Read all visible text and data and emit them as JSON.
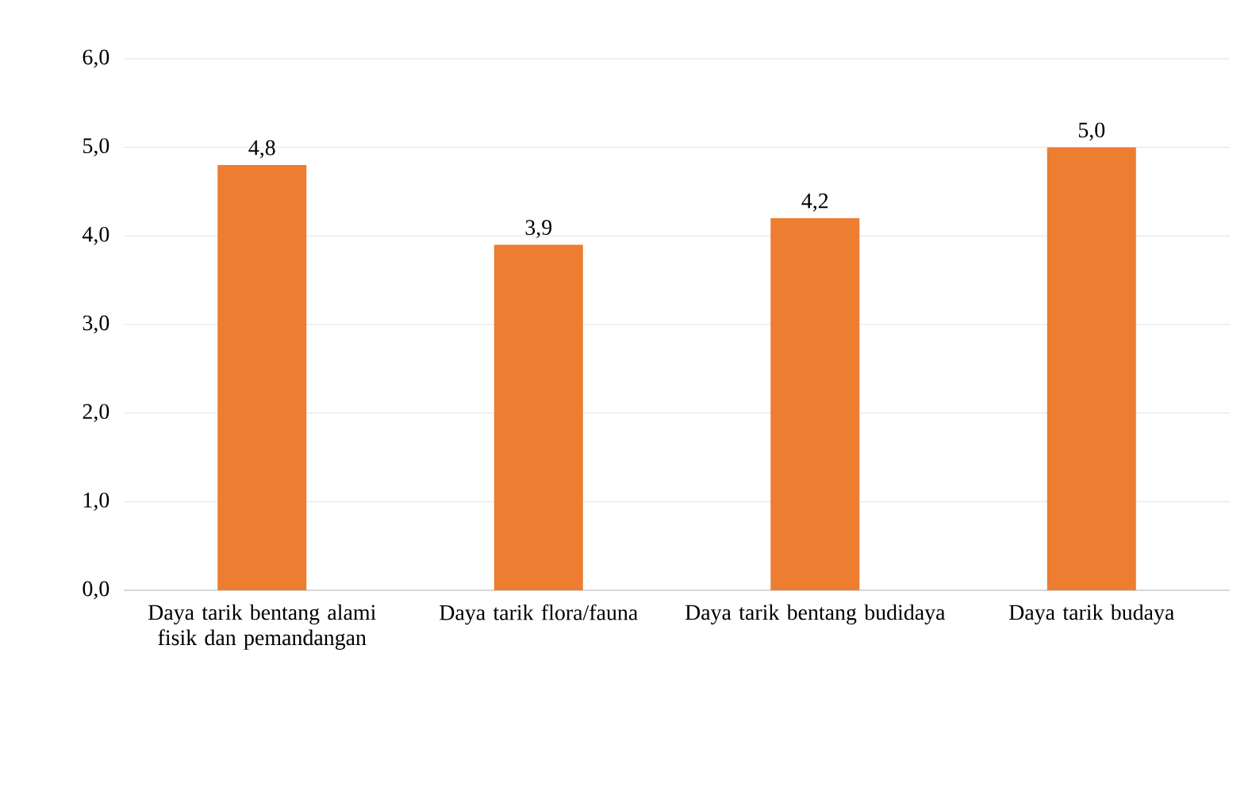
{
  "chart_data": {
    "type": "bar",
    "categories": [
      "Daya tarik bentang alami fisik dan pemandangan",
      "Daya tarik flora/fauna",
      "Daya tarik bentang budidaya",
      "Daya tarik budaya"
    ],
    "values": [
      4.8,
      3.9,
      4.2,
      5.0
    ],
    "value_labels": [
      "4,8",
      "3,9",
      "4,2",
      "5,0"
    ],
    "color": "#ed7d31",
    "ylim": [
      0,
      6
    ],
    "yticks": [
      {
        "value": 0,
        "label": "0,0"
      },
      {
        "value": 1,
        "label": "1,0"
      },
      {
        "value": 2,
        "label": "2,0"
      },
      {
        "value": 3,
        "label": "3,0"
      },
      {
        "value": 4,
        "label": "4,0"
      },
      {
        "value": 5,
        "label": "5,0"
      },
      {
        "value": 6,
        "label": "6,0"
      }
    ],
    "grid": "y"
  }
}
